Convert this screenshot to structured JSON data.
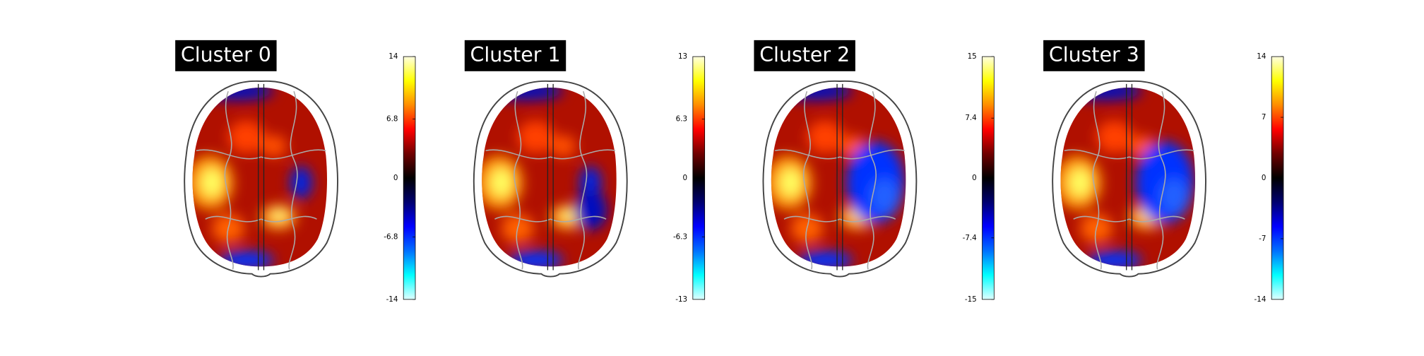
{
  "chart_data": [
    {
      "type": "brain-map",
      "title": "Cluster 0",
      "clim": [
        -14,
        14
      ],
      "cticks": [
        14,
        6.8,
        0,
        -6.8,
        -14
      ],
      "cmap": [
        "#ffffe0",
        "#ffff00",
        "#ff8c00",
        "#ff0000",
        "#700000",
        "#000000",
        "#000070",
        "#0000ff",
        "#0070ff",
        "#00ffff",
        "#e0ffff"
      ]
    },
    {
      "type": "brain-map",
      "title": "Cluster 1",
      "clim": [
        -13,
        13
      ],
      "cticks": [
        13,
        6.3,
        0,
        -6.3,
        -13
      ],
      "cmap": [
        "#ffffe0",
        "#ffff00",
        "#ff8c00",
        "#ff0000",
        "#700000",
        "#000000",
        "#000070",
        "#0000ff",
        "#0070ff",
        "#00ffff",
        "#e0ffff"
      ]
    },
    {
      "type": "brain-map",
      "title": "Cluster 2",
      "clim": [
        -15,
        15
      ],
      "cticks": [
        15,
        7.4,
        0,
        -7.4,
        -15
      ],
      "cmap": [
        "#ffffe0",
        "#ffff00",
        "#ff8c00",
        "#ff0000",
        "#700000",
        "#000000",
        "#000070",
        "#0000ff",
        "#0070ff",
        "#00ffff",
        "#e0ffff"
      ]
    },
    {
      "type": "brain-map",
      "title": "Cluster 3",
      "clim": [
        -14,
        14
      ],
      "cticks": [
        14,
        7,
        0,
        -7,
        -14
      ],
      "cmap": [
        "#ffffe0",
        "#ffff00",
        "#ff8c00",
        "#ff0000",
        "#700000",
        "#000000",
        "#000070",
        "#0000ff",
        "#0070ff",
        "#00ffff",
        "#e0ffff"
      ]
    }
  ]
}
